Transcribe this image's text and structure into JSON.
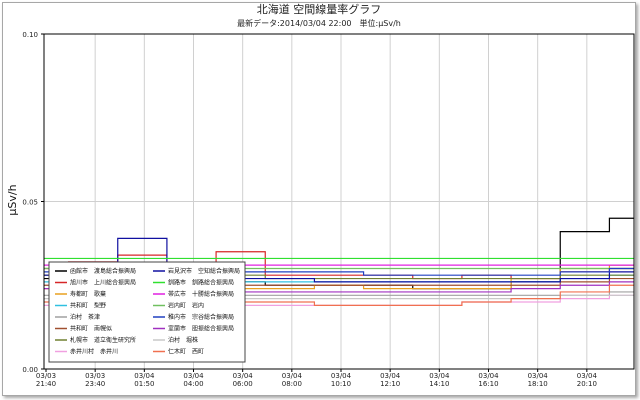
{
  "chart_data": {
    "type": "line",
    "title": "北海道 空間線量率グラフ",
    "subtitle": "最新データ:2014/03/04 22:00　単位:μSv/h",
    "ylabel": "μSv/h",
    "xlabel": "",
    "ylim": [
      0,
      0.1
    ],
    "yticks": [
      "0.00",
      "0.05",
      "0.10"
    ],
    "grid": true,
    "legend_position": "bottom-left",
    "x": [
      "03/03 21:40",
      "03/03 23:40",
      "03/04 01:50",
      "03/04 04:00",
      "03/04 06:00",
      "03/04 08:00",
      "03/04 10:10",
      "03/04 12:10",
      "03/04 14:10",
      "03/04 16:10",
      "03/04 18:10",
      "03/04 20:10",
      "03/04 22:00"
    ],
    "xticks": [
      {
        "d": "03/03",
        "t": "21:40"
      },
      {
        "d": "03/03",
        "t": "23:40"
      },
      {
        "d": "03/04",
        "t": "01:50"
      },
      {
        "d": "03/04",
        "t": "04:00"
      },
      {
        "d": "03/04",
        "t": "06:00"
      },
      {
        "d": "03/04",
        "t": "08:00"
      },
      {
        "d": "03/04",
        "t": "10:10"
      },
      {
        "d": "03/04",
        "t": "12:10"
      },
      {
        "d": "03/04",
        "t": "14:10"
      },
      {
        "d": "03/04",
        "t": "16:10"
      },
      {
        "d": "03/04",
        "t": "18:10"
      },
      {
        "d": "03/04",
        "t": "20:10"
      }
    ],
    "series": [
      {
        "name": "函館市　渡島総合振興局",
        "color": "#000000",
        "values": [
          0.027,
          0.027,
          0.027,
          0.026,
          0.026,
          0.025,
          0.025,
          0.025,
          0.024,
          0.024,
          0.026,
          0.041,
          0.045
        ]
      },
      {
        "name": "旭川市　上川総合振興局",
        "color": "#d62728",
        "values": [
          0.03,
          0.032,
          0.034,
          0.031,
          0.035,
          0.028,
          0.028,
          0.028,
          0.027,
          0.028,
          0.027,
          0.029,
          0.03
        ]
      },
      {
        "name": "寿都町　歌棄",
        "color": "#e8a020",
        "values": [
          0.024,
          0.024,
          0.024,
          0.024,
          0.024,
          0.024,
          0.025,
          0.024,
          0.024,
          0.024,
          0.027,
          0.03,
          0.031
        ]
      },
      {
        "name": "共和町　梨野",
        "color": "#30c0e0",
        "values": [
          0.026,
          0.026,
          0.027,
          0.026,
          0.026,
          0.026,
          0.026,
          0.026,
          0.026,
          0.026,
          0.026,
          0.027,
          0.028
        ]
      },
      {
        "name": "泊村　茶津",
        "color": "#a0a0a0",
        "values": [
          0.022,
          0.022,
          0.022,
          0.022,
          0.022,
          0.022,
          0.022,
          0.022,
          0.022,
          0.022,
          0.022,
          0.022,
          0.023
        ]
      },
      {
        "name": "共和町　南幌似",
        "color": "#a05030",
        "values": [
          0.025,
          0.026,
          0.025,
          0.025,
          0.025,
          0.025,
          0.025,
          0.025,
          0.025,
          0.025,
          0.025,
          0.026,
          0.027
        ]
      },
      {
        "name": "札幌市　道立衛生研究所",
        "color": "#708030",
        "values": [
          0.028,
          0.028,
          0.028,
          0.028,
          0.028,
          0.027,
          0.027,
          0.027,
          0.027,
          0.027,
          0.027,
          0.028,
          0.028
        ]
      },
      {
        "name": "赤井川村　赤井川",
        "color": "#f0a0e0",
        "values": [
          0.019,
          0.019,
          0.019,
          0.019,
          0.019,
          0.019,
          0.019,
          0.019,
          0.019,
          0.02,
          0.02,
          0.021,
          0.022
        ]
      },
      {
        "name": "岩見沢市　空知総合振興局",
        "color": "#1010a0",
        "values": [
          0.028,
          0.031,
          0.039,
          0.029,
          0.027,
          0.027,
          0.026,
          0.026,
          0.026,
          0.026,
          0.026,
          0.027,
          0.029
        ]
      },
      {
        "name": "釧路市　釧路総合振興局",
        "color": "#30e030",
        "values": [
          0.033,
          0.033,
          0.033,
          0.033,
          0.033,
          0.033,
          0.033,
          0.033,
          0.033,
          0.033,
          0.033,
          0.033,
          0.033
        ]
      },
      {
        "name": "帯広市　十勝総合振興局",
        "color": "#e020e0",
        "values": [
          0.031,
          0.031,
          0.031,
          0.031,
          0.031,
          0.031,
          0.031,
          0.031,
          0.031,
          0.031,
          0.031,
          0.031,
          0.031
        ]
      },
      {
        "name": "岩内町　岩内",
        "color": "#70c060",
        "values": [
          0.03,
          0.03,
          0.03,
          0.03,
          0.03,
          0.03,
          0.03,
          0.03,
          0.03,
          0.03,
          0.03,
          0.03,
          0.03
        ]
      },
      {
        "name": "稚内市　宗谷総合振興局",
        "color": "#2040c0",
        "values": [
          0.029,
          0.029,
          0.029,
          0.029,
          0.029,
          0.029,
          0.029,
          0.028,
          0.028,
          0.028,
          0.028,
          0.029,
          0.03
        ]
      },
      {
        "name": "室蘭市　胆振総合振興局",
        "color": "#a030c0",
        "values": [
          0.024,
          0.024,
          0.024,
          0.024,
          0.023,
          0.023,
          0.023,
          0.023,
          0.023,
          0.023,
          0.024,
          0.025,
          0.026
        ]
      },
      {
        "name": "泊村　堀株",
        "color": "#c8c8c8",
        "values": [
          0.021,
          0.021,
          0.021,
          0.021,
          0.021,
          0.021,
          0.021,
          0.021,
          0.021,
          0.021,
          0.021,
          0.022,
          0.022
        ]
      },
      {
        "name": "仁木町　西町",
        "color": "#f07050",
        "values": [
          0.02,
          0.02,
          0.02,
          0.02,
          0.02,
          0.02,
          0.019,
          0.019,
          0.019,
          0.02,
          0.021,
          0.023,
          0.025
        ]
      }
    ]
  }
}
